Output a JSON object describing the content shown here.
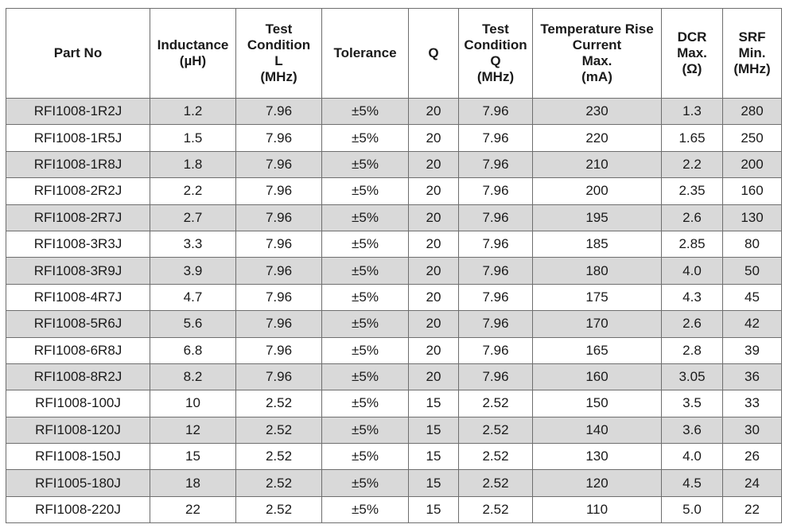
{
  "headers": [
    [
      "Part No"
    ],
    [
      "Inductance",
      "(µH)"
    ],
    [
      "Test",
      "Condition",
      "L",
      "(MHz)"
    ],
    [
      "Tolerance"
    ],
    [
      "Q"
    ],
    [
      "Test",
      "Condition",
      "Q",
      "(MHz)"
    ],
    [
      "Temperature Rise",
      "Current",
      "Max.",
      "(mA)"
    ],
    [
      "DCR",
      "Max.",
      "(Ω)"
    ],
    [
      "SRF",
      "Min.",
      "(MHz)"
    ]
  ],
  "rows": [
    [
      "RFI1008-1R2J",
      "1.2",
      "7.96",
      "±5%",
      "20",
      "7.96",
      "230",
      "1.3",
      "280"
    ],
    [
      "RFI1008-1R5J",
      "1.5",
      "7.96",
      "±5%",
      "20",
      "7.96",
      "220",
      "1.65",
      "250"
    ],
    [
      "RFI1008-1R8J",
      "1.8",
      "7.96",
      "±5%",
      "20",
      "7.96",
      "210",
      "2.2",
      "200"
    ],
    [
      "RFI1008-2R2J",
      "2.2",
      "7.96",
      "±5%",
      "20",
      "7.96",
      "200",
      "2.35",
      "160"
    ],
    [
      "RFI1008-2R7J",
      "2.7",
      "7.96",
      "±5%",
      "20",
      "7.96",
      "195",
      "2.6",
      "130"
    ],
    [
      "RFI1008-3R3J",
      "3.3",
      "7.96",
      "±5%",
      "20",
      "7.96",
      "185",
      "2.85",
      "80"
    ],
    [
      "RFI1008-3R9J",
      "3.9",
      "7.96",
      "±5%",
      "20",
      "7.96",
      "180",
      "4.0",
      "50"
    ],
    [
      "RFI1008-4R7J",
      "4.7",
      "7.96",
      "±5%",
      "20",
      "7.96",
      "175",
      "4.3",
      "45"
    ],
    [
      "RFI1008-5R6J",
      "5.6",
      "7.96",
      "±5%",
      "20",
      "7.96",
      "170",
      "2.6",
      "42"
    ],
    [
      "RFI1008-6R8J",
      "6.8",
      "7.96",
      "±5%",
      "20",
      "7.96",
      "165",
      "2.8",
      "39"
    ],
    [
      "RFI1008-8R2J",
      "8.2",
      "7.96",
      "±5%",
      "20",
      "7.96",
      "160",
      "3.05",
      "36"
    ],
    [
      "RFI1008-100J",
      "10",
      "2.52",
      "±5%",
      "15",
      "2.52",
      "150",
      "3.5",
      "33"
    ],
    [
      "RFI1008-120J",
      "12",
      "2.52",
      "±5%",
      "15",
      "2.52",
      "140",
      "3.6",
      "30"
    ],
    [
      "RFI1008-150J",
      "15",
      "2.52",
      "±5%",
      "15",
      "2.52",
      "130",
      "4.0",
      "26"
    ],
    [
      "RFI1005-180J",
      "18",
      "2.52",
      "±5%",
      "15",
      "2.52",
      "120",
      "4.5",
      "24"
    ],
    [
      "RFI1008-220J",
      "22",
      "2.52",
      "±5%",
      "15",
      "2.52",
      "110",
      "5.0",
      "22"
    ]
  ],
  "colors": {
    "shade_row": "#d9d9d9",
    "border": "#6e6e6e"
  }
}
